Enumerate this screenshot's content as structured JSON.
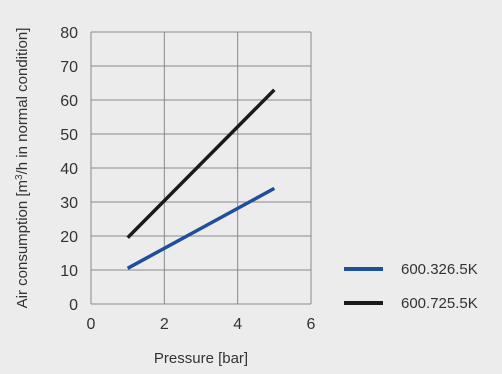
{
  "chart_data": {
    "type": "line",
    "xlabel": "Pressure [bar]",
    "ylabel_pre": "Air consumption [m",
    "ylabel_sup": "3",
    "ylabel_post": "/h in normal condition]",
    "xlim": [
      0,
      6
    ],
    "ylim": [
      0,
      80
    ],
    "x_ticks": [
      "0",
      "2",
      "4",
      "6"
    ],
    "y_ticks": [
      "0",
      "10",
      "20",
      "30",
      "40",
      "50",
      "60",
      "70",
      "80"
    ],
    "grid": true,
    "legend_position": "bottom-right",
    "series": [
      {
        "name": "600.326.5K",
        "color": "#1f4e9c",
        "x": [
          1,
          5
        ],
        "y": [
          10.5,
          34
        ]
      },
      {
        "name": "600.725.5K",
        "color": "#1a1a1a",
        "x": [
          1,
          5
        ],
        "y": [
          19.5,
          63
        ]
      }
    ]
  }
}
